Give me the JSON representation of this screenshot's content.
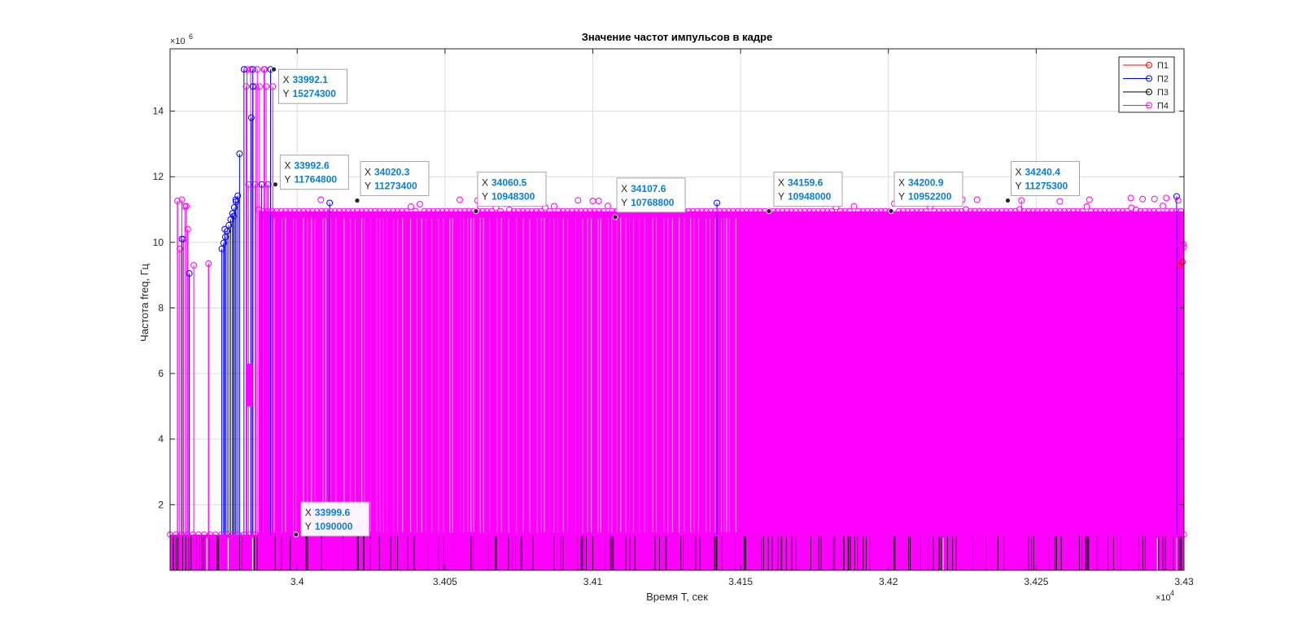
{
  "chart_data": {
    "type": "line",
    "plot_style": "stem",
    "title": "Значение частот импульсов в кадре",
    "xlabel": "Время T, сек",
    "ylabel": "Частота freq, Гц",
    "x_exponent_label": "×10^4",
    "y_exponent_label": "×10^6",
    "xlim": [
      33957,
      34300
    ],
    "ylim": [
      0,
      15900000
    ],
    "xticks": [
      34000,
      34050,
      34100,
      34150,
      34200,
      34250,
      34300
    ],
    "xtick_labels": [
      "3.4",
      "3.405",
      "3.41",
      "3.415",
      "3.42",
      "3.425",
      "3.43"
    ],
    "yticks": [
      2000000,
      4000000,
      6000000,
      8000000,
      10000000,
      12000000,
      14000000
    ],
    "ytick_labels": [
      "2",
      "4",
      "6",
      "8",
      "10",
      "12",
      "14"
    ],
    "grid": true,
    "legend_position": "top-right",
    "series": [
      {
        "name": "П1",
        "color": "#ff0000",
        "marker": "circle"
      },
      {
        "name": "П2",
        "color": "#0000ff",
        "marker": "circle"
      },
      {
        "name": "П3",
        "color": "#000000",
        "marker": "circle"
      },
      {
        "name": "П4",
        "color": "#ff00ff",
        "marker": "circle"
      }
    ],
    "baseline_value": 1090000,
    "dense_level": 10948000,
    "blue_stems": [
      {
        "x": 33975.5,
        "y": 10400000
      },
      {
        "x": 33978.5,
        "y": 10800000
      },
      {
        "x": 33979.2,
        "y": 11300000
      },
      {
        "x": 33980.5,
        "y": 12700000
      },
      {
        "x": 33984.5,
        "y": 13800000
      },
      {
        "x": 33985.0,
        "y": 15274300
      },
      {
        "x": 33963.5,
        "y": 9050000
      },
      {
        "x": 33961.0,
        "y": 10100000
      },
      {
        "x": 34011.0,
        "y": 11200000
      },
      {
        "x": 34142.0,
        "y": 11200000
      },
      {
        "x": 34297.5,
        "y": 11400000
      }
    ],
    "magenta_stems": [
      {
        "x": 33961.0,
        "y": 11300000
      },
      {
        "x": 33962.0,
        "y": 11100000
      },
      {
        "x": 33965.0,
        "y": 9300000
      },
      {
        "x": 33983.0,
        "y": 15274300
      },
      {
        "x": 33986.0,
        "y": 14750000
      },
      {
        "x": 33989.0,
        "y": 15274300
      },
      {
        "x": 33990.0,
        "y": 11764800
      },
      {
        "x": 34061.0,
        "y": 11273400
      },
      {
        "x": 34245.0,
        "y": 11275300
      }
    ],
    "datatips": [
      {
        "x": 33992.1,
        "y": 15274300,
        "x_label": "X",
        "y_label": "Y",
        "x_text": "33992.1",
        "y_text": "15274300"
      },
      {
        "x": 33992.6,
        "y": 11764800,
        "x_label": "X",
        "y_label": "Y",
        "x_text": "33992.6",
        "y_text": "11764800"
      },
      {
        "x": 33999.6,
        "y": 1090000,
        "x_label": "X",
        "y_label": "Y",
        "x_text": "33999.6",
        "y_text": "1090000"
      },
      {
        "x": 34020.3,
        "y": 11273400,
        "x_label": "X",
        "y_label": "Y",
        "x_text": "34020.3",
        "y_text": "11273400"
      },
      {
        "x": 34060.5,
        "y": 10948300,
        "x_label": "X",
        "y_label": "Y",
        "x_text": "34060.5",
        "y_text": "10948300"
      },
      {
        "x": 34107.6,
        "y": 10768800,
        "x_label": "X",
        "y_label": "Y",
        "x_text": "34107.6",
        "y_text": "10768800"
      },
      {
        "x": 34159.6,
        "y": 10948000,
        "x_label": "X",
        "y_label": "Y",
        "x_text": "34159.6",
        "y_text": "10948000"
      },
      {
        "x": 34200.9,
        "y": 10952200,
        "x_label": "X",
        "y_label": "Y",
        "x_text": "34200.9",
        "y_text": "10952200"
      },
      {
        "x": 34240.4,
        "y": 11275300,
        "x_label": "X",
        "y_label": "Y",
        "x_text": "34240.4",
        "y_text": "11275300"
      }
    ]
  }
}
